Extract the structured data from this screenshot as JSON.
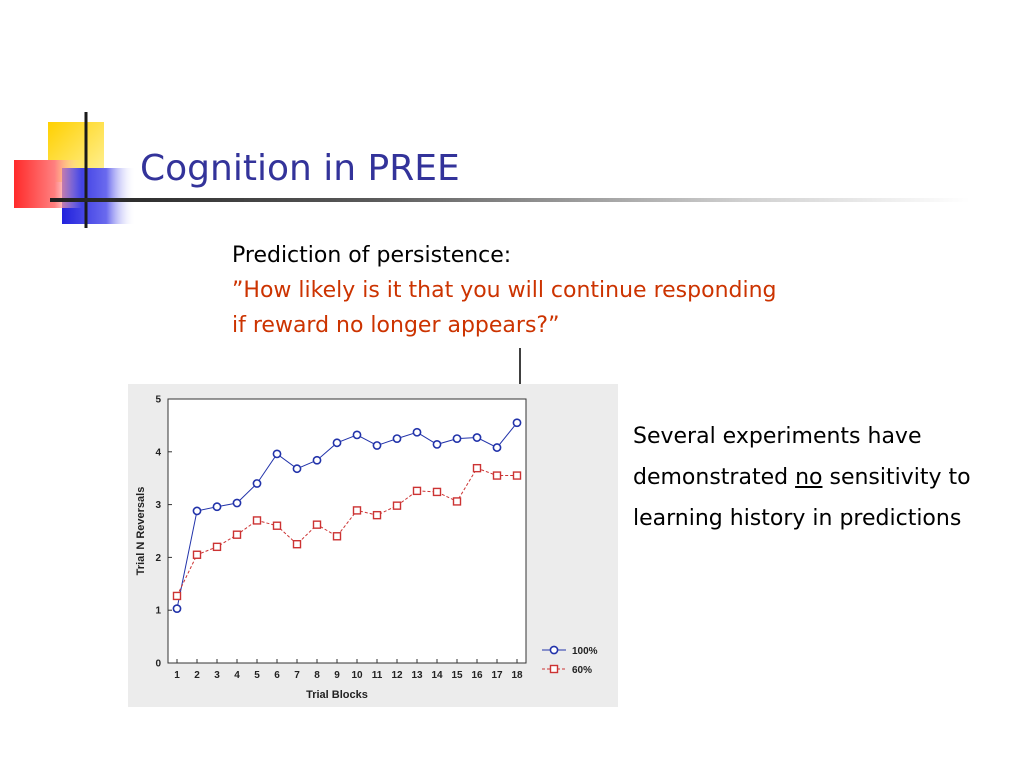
{
  "slide": {
    "title": "Cognition in PREE",
    "prompt_heading": "Prediction of persistence:",
    "prompt_quote": "”How likely is it that you will continue responding if reward no longer appears?”",
    "side_text": {
      "before": "Several experiments have demonstrated",
      "emphasis": "no",
      "after": "sensitivity to learning history in predictions"
    }
  },
  "colors": {
    "title": "#33339a",
    "quote": "#cc3300",
    "series_100": "#2233aa",
    "series_60": "#cc3333"
  },
  "icons": {
    "logo": "decorative-squares-logo",
    "arrow": "down-arrow-icon"
  },
  "chart_data": {
    "type": "line",
    "xlabel": "Trial Blocks",
    "ylabel": "Trial N Reversals",
    "x": [
      1,
      2,
      3,
      4,
      5,
      6,
      7,
      8,
      9,
      10,
      11,
      12,
      13,
      14,
      15,
      16,
      17,
      18
    ],
    "ylim": [
      0,
      5
    ],
    "yticks": [
      0,
      1,
      2,
      3,
      4,
      5
    ],
    "grid": false,
    "legend_position": "bottom-right",
    "series": [
      {
        "name": "100%",
        "marker": "circle",
        "line": "solid",
        "color": "#2233aa",
        "values": [
          1.03,
          2.88,
          2.96,
          3.03,
          3.4,
          3.96,
          3.68,
          3.84,
          4.17,
          4.32,
          4.12,
          4.25,
          4.37,
          4.14,
          4.25,
          4.27,
          4.08,
          4.55
        ]
      },
      {
        "name": "60%",
        "marker": "square",
        "line": "dashed",
        "color": "#cc3333",
        "values": [
          1.27,
          2.05,
          2.2,
          2.43,
          2.7,
          2.6,
          2.25,
          2.62,
          2.4,
          2.89,
          2.8,
          2.98,
          3.26,
          3.24,
          3.06,
          3.69,
          3.55,
          3.55
        ]
      }
    ]
  }
}
